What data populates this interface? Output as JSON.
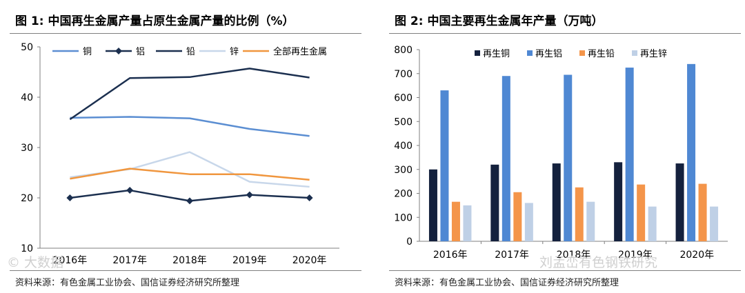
{
  "panels": {
    "left": {
      "title": "图 1:  中国再生金属产量占原生金属产量的比例（%）",
      "source": "资料来源：有色金属工业协会、国信证券经济研究所整理"
    },
    "right": {
      "title": "图 2:  中国主要再生金属年产量（万吨）",
      "source": "资料来源：有色金属工业协会、国信证券经济研究所整理"
    }
  },
  "watermark": {
    "left": "© 大数据",
    "right": "刘孟峦有色钢铁研究"
  },
  "chart_data": [
    {
      "type": "line",
      "title": "中国再生金属产量占原生金属产量的比例（%）",
      "categories": [
        "2016年",
        "2017年",
        "2018年",
        "2019年",
        "2020年"
      ],
      "ylim": [
        10,
        50
      ],
      "yticks": [
        10,
        20,
        30,
        40,
        50
      ],
      "legend_position": "top",
      "series": [
        {
          "name": "铜",
          "color": "#5b8ed2",
          "marker": "none",
          "values": [
            35.9,
            36.1,
            35.8,
            33.7,
            32.3
          ]
        },
        {
          "name": "铝",
          "color": "#1b2f4f",
          "marker": "diamond",
          "values": [
            20.0,
            21.5,
            19.4,
            20.6,
            20.0
          ]
        },
        {
          "name": "铅",
          "color": "#1b2f4f",
          "marker": "none",
          "values": [
            35.6,
            43.8,
            44.0,
            45.7,
            43.9
          ]
        },
        {
          "name": "锌",
          "color": "#c8d7ea",
          "marker": "none",
          "values": [
            24.1,
            25.7,
            29.1,
            23.2,
            22.2
          ]
        },
        {
          "name": "全部再生金属",
          "color": "#f0963e",
          "marker": "none",
          "values": [
            23.8,
            25.8,
            24.7,
            24.7,
            23.6
          ]
        }
      ]
    },
    {
      "type": "bar",
      "title": "中国主要再生金属年产量（万吨）",
      "categories": [
        "2016年",
        "2017年",
        "2018年",
        "2019年",
        "2020年"
      ],
      "ylim": [
        0,
        800
      ],
      "yticks": [
        0,
        100,
        200,
        300,
        400,
        500,
        600,
        700,
        800
      ],
      "legend_position": "top",
      "series": [
        {
          "name": "再生铜",
          "color": "#14213d",
          "values": [
            300,
            320,
            325,
            330,
            325
          ]
        },
        {
          "name": "再生铝",
          "color": "#4f88d3",
          "values": [
            630,
            690,
            695,
            725,
            740
          ]
        },
        {
          "name": "再生铅",
          "color": "#f4954a",
          "values": [
            165,
            205,
            225,
            237,
            240
          ]
        },
        {
          "name": "再生锌",
          "color": "#bfd0e6",
          "values": [
            150,
            160,
            165,
            145,
            145
          ]
        }
      ]
    }
  ]
}
